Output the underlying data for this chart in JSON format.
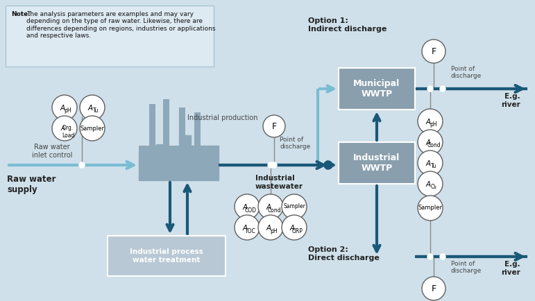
{
  "bg_color": "#cfe0ea",
  "note_box_color": "#ddeaf2",
  "note_box_border": "#aac4d4",
  "box_color_wwtp": "#8a9fae",
  "box_color_process": "#b8c8d4",
  "dark_arrow": "#1a5878",
  "light_arrow": "#7abcd4",
  "option1_label": "Option 1:\nIndirect discharge",
  "option2_label": "Option 2:\nDirect discharge",
  "municipal_wwtp": "Municipal\nWWTP",
  "industrial_wwtp": "Industrial\nWWTP",
  "process_treatment": "Industrial process\nwater treatment",
  "raw_water_supply": "Raw water\nsupply",
  "raw_water_inlet": "Raw water\ninlet control",
  "industrial_production": "Industrial production",
  "industrial_wastewater": "Industrial\nwastewater",
  "point_of_discharge": "Point of\ndischarge",
  "eg_river": "E.g.\nriver"
}
